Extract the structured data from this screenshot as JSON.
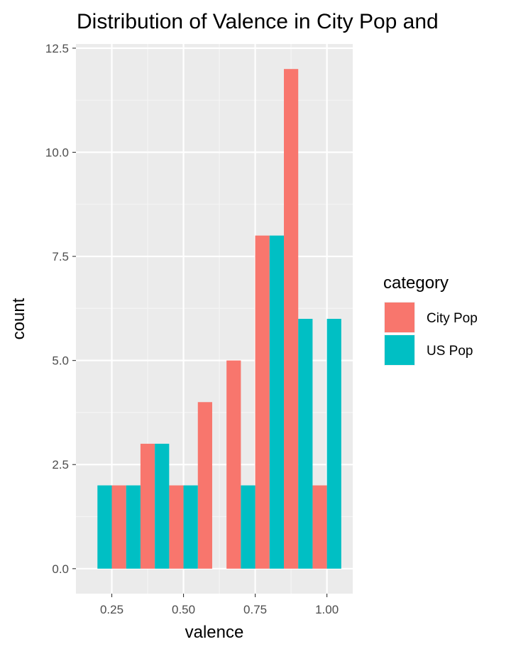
{
  "chart_data": {
    "type": "bar",
    "title": "Distribution of Valence in City Pop and",
    "xlabel": "valence",
    "ylabel": "count",
    "xlim": [
      0.125,
      1.09
    ],
    "ylim": [
      -0.6,
      12.6
    ],
    "x_ticks": [
      0.25,
      0.5,
      0.75,
      1.0
    ],
    "x_tick_labels": [
      "0.25",
      "0.50",
      "0.75",
      "1.00"
    ],
    "y_ticks": [
      0,
      2.5,
      5,
      7.5,
      10,
      12.5
    ],
    "y_tick_labels": [
      "0.0",
      "2.5",
      "5.0",
      "7.5",
      "10.0",
      "12.5"
    ],
    "grid": true,
    "bar_width": 0.05,
    "legend": {
      "title": "category",
      "position": "right"
    },
    "series": [
      {
        "name": "City Pop",
        "color": "#F8766D",
        "bars": [
          {
            "x": 0.275,
            "value": 2
          },
          {
            "x": 0.375,
            "value": 3
          },
          {
            "x": 0.475,
            "value": 2
          },
          {
            "x": 0.575,
            "value": 4
          },
          {
            "x": 0.675,
            "value": 5
          },
          {
            "x": 0.775,
            "value": 8
          },
          {
            "x": 0.875,
            "value": 12
          },
          {
            "x": 0.975,
            "value": 2
          }
        ]
      },
      {
        "name": "US Pop",
        "color": "#00BFC4",
        "bars": [
          {
            "x": 0.225,
            "value": 2
          },
          {
            "x": 0.325,
            "value": 2
          },
          {
            "x": 0.425,
            "value": 3
          },
          {
            "x": 0.525,
            "value": 2
          },
          {
            "x": 0.725,
            "value": 2
          },
          {
            "x": 0.825,
            "value": 8
          },
          {
            "x": 0.925,
            "value": 6
          },
          {
            "x": 1.025,
            "value": 6
          }
        ]
      }
    ]
  },
  "colors": {
    "panel_background": "#EBEBEB",
    "grid_major": "#FFFFFF",
    "grid_minor": "#F5F5F5",
    "tick_text": "#4D4D4D"
  }
}
